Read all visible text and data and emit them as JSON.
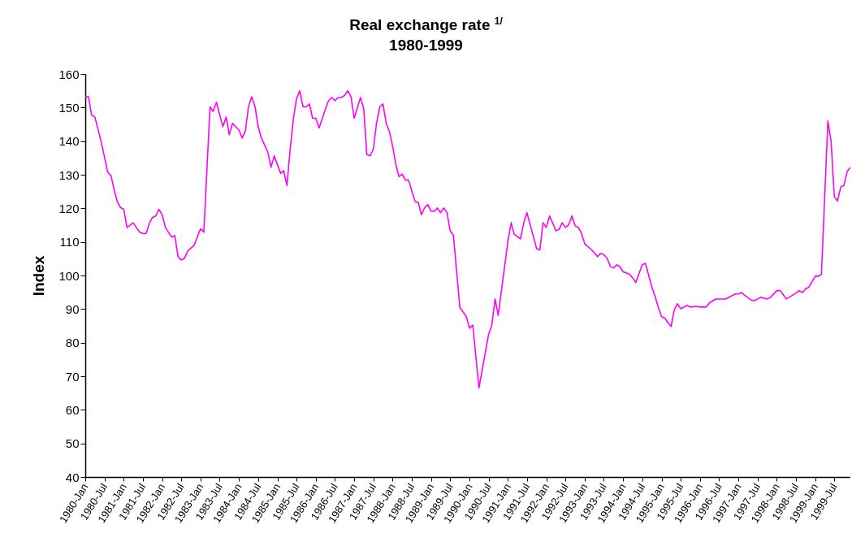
{
  "chart_data": {
    "type": "line",
    "title": "Real exchange rate $^{1/}$",
    "subtitle": "1980-1999",
    "ylabel": "Index",
    "ylim": [
      40,
      160
    ],
    "yticks": [
      40,
      50,
      60,
      70,
      80,
      90,
      100,
      110,
      120,
      130,
      140,
      150,
      160
    ],
    "xlim": [
      "1980-01",
      "1999-12"
    ],
    "xticks": [
      {
        "value": "1980-01",
        "label": "1980-Jan"
      },
      {
        "value": "1980-07",
        "label": "1980-Jul"
      },
      {
        "value": "1981-01",
        "label": "1981-Jan"
      },
      {
        "value": "1981-07",
        "label": "1981-Jul"
      },
      {
        "value": "1982-01",
        "label": "1982-Jan"
      },
      {
        "value": "1982-07",
        "label": "1982-Jul"
      },
      {
        "value": "1983-01",
        "label": "1983-Jan"
      },
      {
        "value": "1983-07",
        "label": "1983-Jul"
      },
      {
        "value": "1984-01",
        "label": "1984-Jan"
      },
      {
        "value": "1984-07",
        "label": "1984-Jul"
      },
      {
        "value": "1985-01",
        "label": "1985-Jan"
      },
      {
        "value": "1985-07",
        "label": "1985-Jul"
      },
      {
        "value": "1986-01",
        "label": "1986-Jan"
      },
      {
        "value": "1986-07",
        "label": "1986-Jul"
      },
      {
        "value": "1987-01",
        "label": "1987-Jan"
      },
      {
        "value": "1987-07",
        "label": "1987-Jul"
      },
      {
        "value": "1988-01",
        "label": "1988-Jan"
      },
      {
        "value": "1988-07",
        "label": "1988-Jul"
      },
      {
        "value": "1989-01",
        "label": "1989-Jan"
      },
      {
        "value": "1989-07",
        "label": "1989-Jul"
      },
      {
        "value": "1990-01",
        "label": "1990-Jan"
      },
      {
        "value": "1990-07",
        "label": "1990-Jul"
      },
      {
        "value": "1991-01",
        "label": "1991-Jan"
      },
      {
        "value": "1991-07",
        "label": "1991-Jul"
      },
      {
        "value": "1992-01",
        "label": "1992-Jan"
      },
      {
        "value": "1992-07",
        "label": "1992-Jul"
      },
      {
        "value": "1993-01",
        "label": "1993-Jan"
      },
      {
        "value": "1993-07",
        "label": "1993-Jul"
      },
      {
        "value": "1994-01",
        "label": "1994-Jan"
      },
      {
        "value": "1994-07",
        "label": "1994-Jul"
      },
      {
        "value": "1995-01",
        "label": "1995-Jan"
      },
      {
        "value": "1995-07",
        "label": "1995-Jul"
      },
      {
        "value": "1996-01",
        "label": "1996-Jan"
      },
      {
        "value": "1996-07",
        "label": "1996-Jul"
      },
      {
        "value": "1997-01",
        "label": "1997-Jan"
      },
      {
        "value": "1997-07",
        "label": "1997-Jul"
      },
      {
        "value": "1998-01",
        "label": "1998-Jan"
      },
      {
        "value": "1998-07",
        "label": "1998-Jul"
      },
      {
        "value": "1999-01",
        "label": "1999-Jan"
      },
      {
        "value": "1999-07",
        "label": "1999-Jul"
      }
    ],
    "grid": false,
    "x": [
      "1980-01",
      "1980-02",
      "1980-03",
      "1980-04",
      "1980-06",
      "1980-08",
      "1980-09",
      "1980-10",
      "1980-11",
      "1980-12",
      "1981-01",
      "1981-02",
      "1981-04",
      "1981-06",
      "1981-07",
      "1981-08",
      "1981-09",
      "1981-10",
      "1981-11",
      "1981-12",
      "1982-01",
      "1982-02",
      "1982-04",
      "1982-05",
      "1982-06",
      "1982-07",
      "1982-08",
      "1982-09",
      "1982-11",
      "1983-01",
      "1983-02",
      "1983-04",
      "1983-05",
      "1983-06",
      "1983-08",
      "1983-09",
      "1983-10",
      "1983-11",
      "1984-01",
      "1984-02",
      "1984-03",
      "1984-04",
      "1984-05",
      "1984-06",
      "1984-07",
      "1984-08",
      "1984-10",
      "1984-11",
      "1984-12",
      "1985-02",
      "1985-03",
      "1985-04",
      "1985-05",
      "1985-06",
      "1985-07",
      "1985-08",
      "1985-09",
      "1985-10",
      "1985-11",
      "1985-12",
      "1986-01",
      "1986-02",
      "1986-04",
      "1986-05",
      "1986-06",
      "1986-07",
      "1986-08",
      "1986-09",
      "1986-10",
      "1986-11",
      "1986-12",
      "1987-01",
      "1987-03",
      "1987-04",
      "1987-05",
      "1987-06",
      "1987-07",
      "1987-08",
      "1987-09",
      "1987-10",
      "1987-11",
      "1987-12",
      "1988-01",
      "1988-02",
      "1988-03",
      "1988-04",
      "1988-05",
      "1988-06",
      "1988-07",
      "1988-08",
      "1988-09",
      "1988-10",
      "1988-11",
      "1988-12",
      "1989-01",
      "1989-02",
      "1989-03",
      "1989-04",
      "1989-05",
      "1989-06",
      "1989-07",
      "1989-08",
      "1989-10",
      "1989-12",
      "1990-01",
      "1990-02",
      "1990-04",
      "1990-07",
      "1990-08",
      "1990-09",
      "1990-10",
      "1991-01",
      "1991-02",
      "1991-03",
      "1991-05",
      "1991-06",
      "1991-07",
      "1991-08",
      "1991-10",
      "1991-11",
      "1991-12",
      "1992-01",
      "1992-02",
      "1992-03",
      "1992-04",
      "1992-05",
      "1992-06",
      "1992-07",
      "1992-08",
      "1992-09",
      "1992-10",
      "1992-11",
      "1992-12",
      "1993-01",
      "1993-03",
      "1993-04",
      "1993-05",
      "1993-06",
      "1993-07",
      "1993-08",
      "1993-09",
      "1993-10",
      "1993-11",
      "1993-12",
      "1994-01",
      "1994-03",
      "1994-04",
      "1994-05",
      "1994-07",
      "1994-08",
      "1994-10",
      "1994-11",
      "1994-12",
      "1995-01",
      "1995-02",
      "1995-03",
      "1995-04",
      "1995-05",
      "1995-06",
      "1995-07",
      "1995-09",
      "1995-10",
      "1995-12",
      "1996-01",
      "1996-03",
      "1996-04",
      "1996-06",
      "1996-09",
      "1996-12",
      "1997-01",
      "1997-02",
      "1997-03",
      "1997-05",
      "1997-06",
      "1997-08",
      "1997-10",
      "1997-11",
      "1998-01",
      "1998-02",
      "1998-04",
      "1998-07",
      "1998-08",
      "1998-09",
      "1998-10",
      "1998-11",
      "1999-01",
      "1999-02",
      "1999-03",
      "1999-05",
      "1999-06",
      "1999-07",
      "1999-08",
      "1999-09",
      "1999-10",
      "1999-11",
      "1999-12"
    ],
    "series": [
      {
        "color": "#ff00ff",
        "values": [
          153.2,
          153.2,
          147.7,
          147.2,
          139.7,
          130.8,
          129.8,
          125.6,
          121.9,
          120.2,
          119.7,
          114.3,
          115.7,
          112.9,
          112.5,
          112.5,
          115.5,
          117.3,
          117.7,
          119.7,
          118.1,
          114.3,
          111.4,
          111.9,
          105.6,
          104.6,
          105.1,
          107.3,
          109.0,
          113.9,
          112.9,
          150.2,
          148.8,
          151.6,
          144.3,
          147.2,
          141.9,
          145.3,
          143.3,
          140.9,
          142.9,
          150.2,
          153.2,
          150.4,
          144.5,
          140.9,
          136.8,
          132.2,
          135.6,
          130.4,
          131.2,
          126.8,
          137.3,
          146.5,
          152.6,
          155.0,
          150.2,
          150.2,
          151.1,
          146.8,
          146.8,
          143.9,
          149.4,
          152.0,
          153.0,
          152.0,
          153.0,
          153.0,
          153.6,
          155.0,
          153.2,
          146.8,
          153.0,
          149.8,
          136.0,
          135.6,
          137.5,
          145.3,
          150.2,
          151.1,
          145.3,
          142.9,
          138.5,
          133.1,
          129.4,
          130.2,
          128.4,
          128.4,
          125.2,
          122.1,
          121.7,
          118.1,
          120.2,
          121.1,
          119.1,
          119.1,
          120.1,
          118.7,
          120.1,
          118.7,
          113.3,
          112.0,
          90.5,
          87.8,
          84.3,
          85.2,
          66.5,
          82.4,
          85.2,
          93.0,
          88.1,
          110.2,
          115.7,
          112.3,
          110.9,
          115.7,
          118.7,
          115.1,
          108.0,
          107.6,
          115.7,
          114.3,
          117.7,
          115.7,
          113.3,
          113.7,
          115.7,
          114.3,
          115.1,
          117.7,
          114.8,
          114.3,
          112.5,
          109.4,
          107.8,
          106.8,
          105.6,
          106.6,
          106.2,
          105.2,
          102.7,
          102.2,
          103.2,
          102.6,
          101.1,
          100.4,
          99.3,
          97.9,
          103.2,
          103.6,
          96.5,
          93.7,
          90.5,
          87.7,
          87.3,
          86.0,
          84.8,
          89.7,
          91.6,
          90.1,
          91.1,
          90.6,
          90.8,
          90.6,
          90.6,
          91.9,
          93.0,
          93.0,
          94.5,
          94.5,
          94.9,
          94.1,
          92.7,
          92.5,
          93.5,
          93.0,
          93.5,
          95.5,
          95.5,
          93.0,
          94.7,
          95.5,
          94.9,
          96.0,
          96.5,
          99.8,
          99.8,
          100.3,
          146.0,
          139.8,
          123.5,
          122.2,
          126.4,
          126.8,
          131.0,
          132.2
        ]
      }
    ]
  }
}
